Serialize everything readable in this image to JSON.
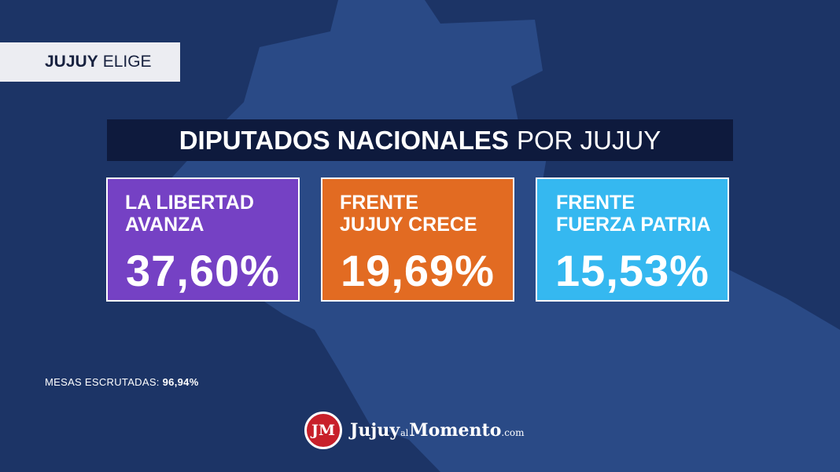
{
  "tag": {
    "bold": "JUJUY",
    "rest": "ELIGE"
  },
  "title": {
    "bold": "DIPUTADOS NACIONALES",
    "rest": "POR JUJUY"
  },
  "results": [
    {
      "name_line1": "LA LIBERTAD",
      "name_line2": "AVANZA",
      "percent": "37,60%",
      "color": "#7541c4"
    },
    {
      "name_line1": "FRENTE",
      "name_line2": "JUJUY CRECE",
      "percent": "19,69%",
      "color": "#e26b22"
    },
    {
      "name_line1": "FRENTE",
      "name_line2": "FUERZA PATRIA",
      "percent": "15,53%",
      "color": "#35b8f0"
    }
  ],
  "mesas": {
    "label": "MESAS ESCRUTADAS:",
    "value": "96,94%"
  },
  "logo": {
    "monogram": "JM",
    "part1": "Jujuy",
    "part2": "al",
    "part3": "Momento",
    "part4": ".com"
  }
}
